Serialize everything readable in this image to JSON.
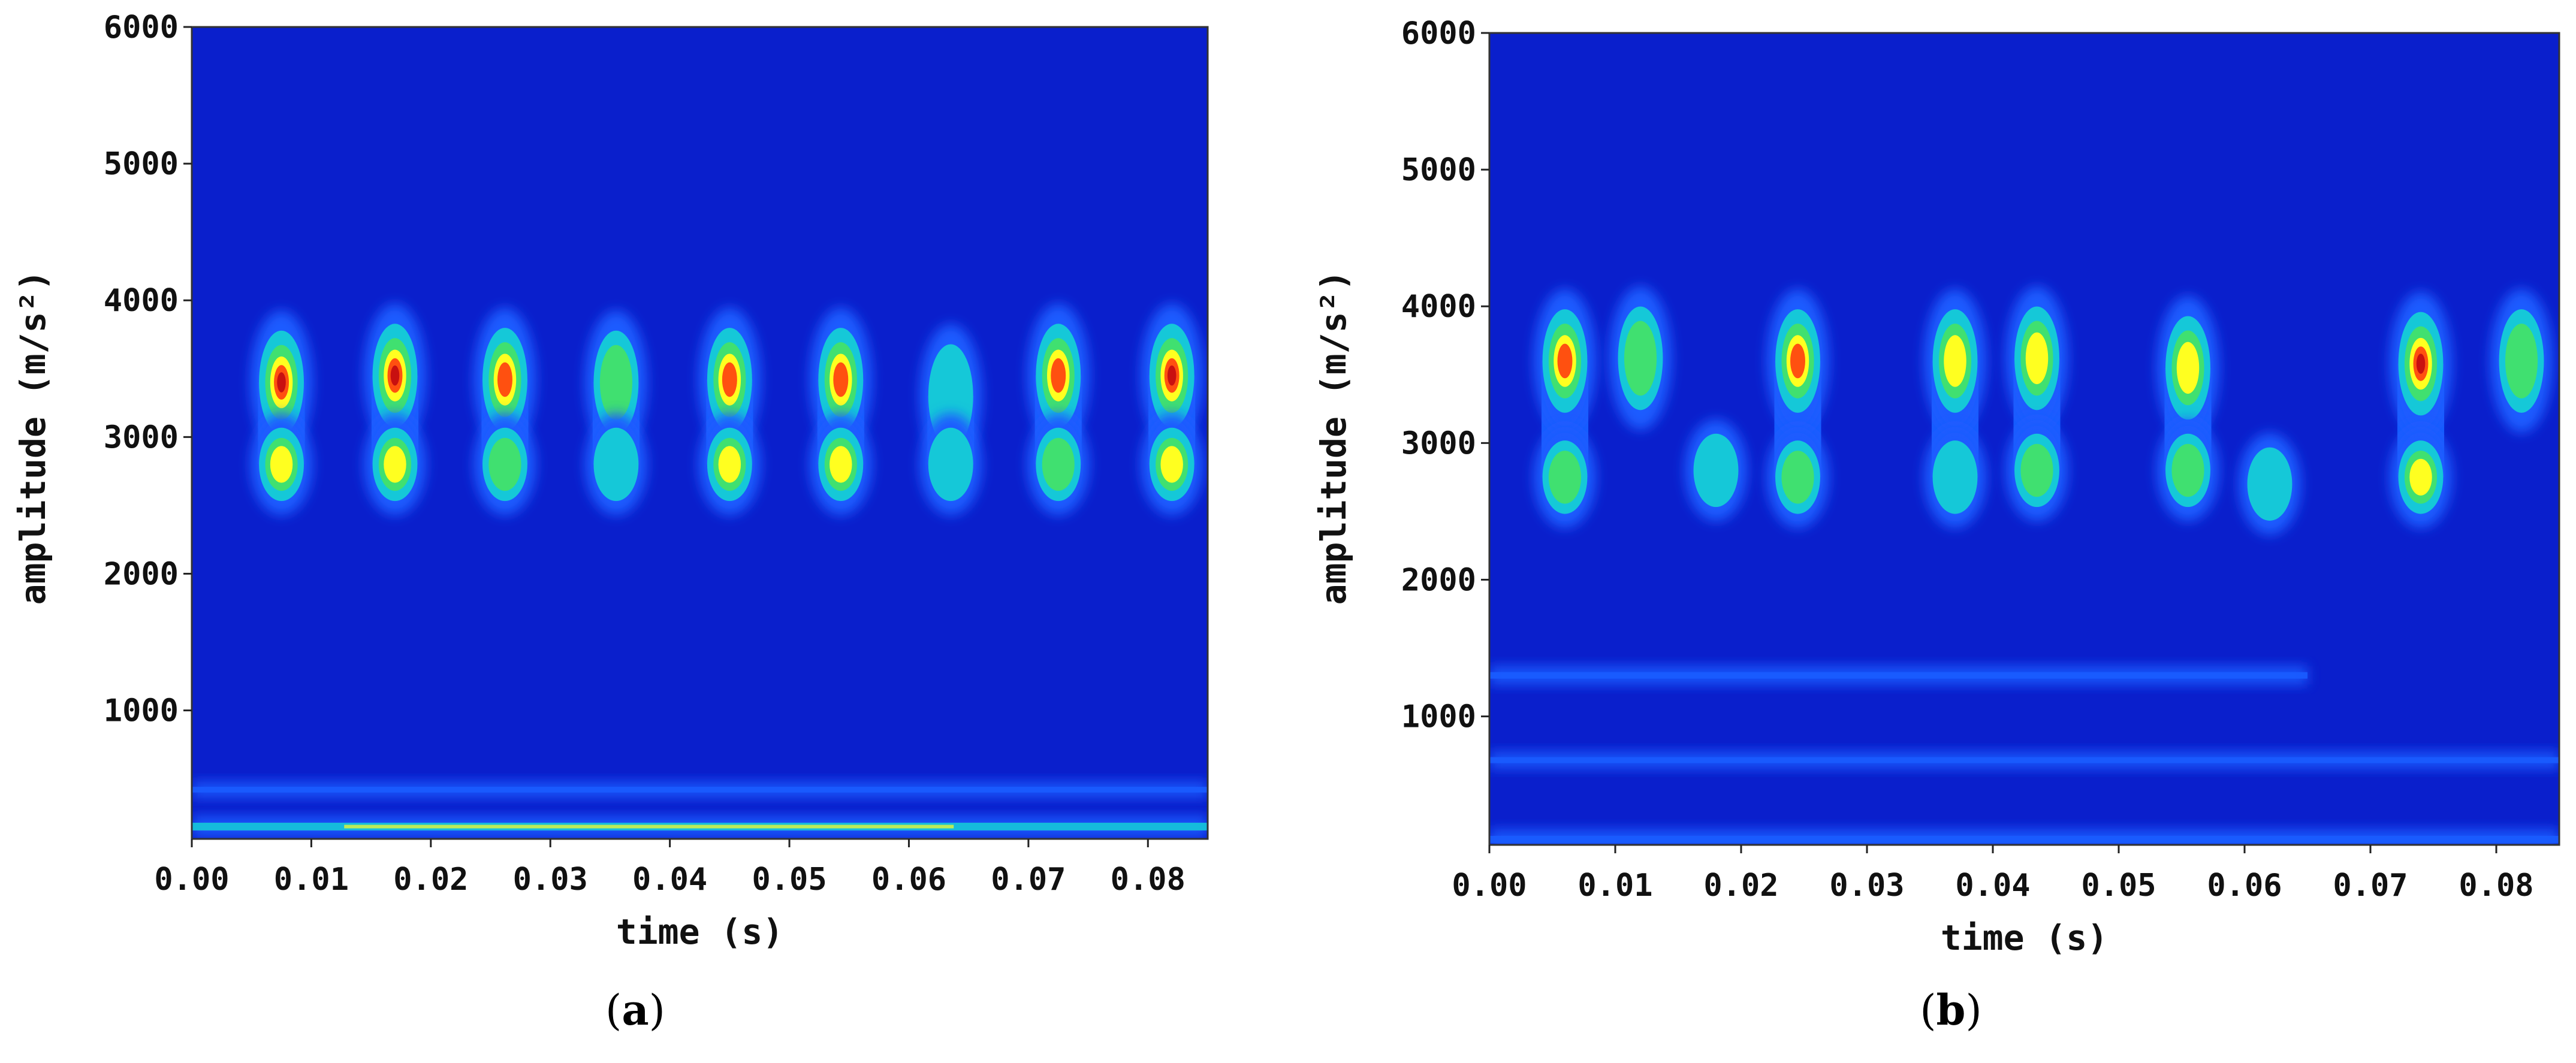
{
  "chart_data": [
    {
      "type": "heatmap",
      "panel_label": "a",
      "xlabel": "time (s)",
      "ylabel": "amplitude (m/s²)",
      "xlim": [
        0.0,
        0.085
      ],
      "ylim": [
        60,
        6000
      ],
      "xticks": [
        "0.00",
        "0.01",
        "0.02",
        "0.03",
        "0.04",
        "0.05",
        "0.06",
        "0.07",
        "0.08"
      ],
      "yticks": [
        "1000",
        "2000",
        "3000",
        "4000",
        "5000",
        "6000"
      ],
      "background_color": "#0a1fcc",
      "colormap": [
        "#0a1fcc",
        "#1a5cff",
        "#15c8d8",
        "#40e070",
        "#ffff20",
        "#ff5010",
        "#c81010"
      ],
      "bands": [
        {
          "y": 150,
          "x_start": 0.0,
          "x_end": 0.085,
          "intensity": 0.6
        },
        {
          "y": 420,
          "x_start": 0.0,
          "x_end": 0.085,
          "intensity": 0.25
        }
      ],
      "blobs": [
        {
          "t": 0.0075,
          "peak_upper": 3400,
          "peak_lower": 2800,
          "intensity": 0.95
        },
        {
          "t": 0.017,
          "peak_upper": 3450,
          "peak_lower": 2800,
          "intensity": 1.0
        },
        {
          "t": 0.0262,
          "peak_upper": 3420,
          "peak_lower": 2800,
          "intensity": 0.75
        },
        {
          "t": 0.0355,
          "peak_upper": 3400,
          "peak_lower": 2800,
          "intensity": 0.55
        },
        {
          "t": 0.045,
          "peak_upper": 3420,
          "peak_lower": 2800,
          "intensity": 0.9
        },
        {
          "t": 0.0543,
          "peak_upper": 3420,
          "peak_lower": 2800,
          "intensity": 0.9
        },
        {
          "t": 0.0635,
          "peak_upper": 3300,
          "peak_lower": 2800,
          "intensity": 0.3
        },
        {
          "t": 0.0725,
          "peak_upper": 3450,
          "peak_lower": 2800,
          "intensity": 0.85
        },
        {
          "t": 0.082,
          "peak_upper": 3450,
          "peak_lower": 2800,
          "intensity": 0.95
        }
      ]
    },
    {
      "type": "heatmap",
      "panel_label": "b",
      "xlabel": "time (s)",
      "ylabel": "amplitude (m/s²)",
      "xlim": [
        0.0,
        0.085
      ],
      "ylim": [
        60,
        6000
      ],
      "xticks": [
        "0.00",
        "0.01",
        "0.02",
        "0.03",
        "0.04",
        "0.05",
        "0.06",
        "0.07",
        "0.08"
      ],
      "yticks": [
        "1000",
        "2000",
        "3000",
        "4000",
        "5000",
        "6000"
      ],
      "background_color": "#0a1fcc",
      "colormap": [
        "#0a1fcc",
        "#1a5cff",
        "#15c8d8",
        "#40e070",
        "#ffff20",
        "#ff5010",
        "#c81010"
      ],
      "bands": [
        {
          "y": 100,
          "x_start": 0.0,
          "x_end": 0.085,
          "intensity": 0.5
        },
        {
          "y": 680,
          "x_start": 0.0,
          "x_end": 0.085,
          "intensity": 0.3
        },
        {
          "y": 1300,
          "x_start": 0.0,
          "x_end": 0.065,
          "intensity": 0.4
        }
      ],
      "blobs": [
        {
          "t": 0.006,
          "peak_upper": 3600,
          "peak_lower": 2750,
          "intensity": 0.75
        },
        {
          "t": 0.012,
          "peak_upper": 3620,
          "peak_lower": 0,
          "intensity": 0.5
        },
        {
          "t": 0.018,
          "peak_upper": 0,
          "peak_lower": 2800,
          "intensity": 0.55
        },
        {
          "t": 0.0245,
          "peak_upper": 3600,
          "peak_lower": 2750,
          "intensity": 0.8
        },
        {
          "t": 0.037,
          "peak_upper": 3600,
          "peak_lower": 2750,
          "intensity": 0.6
        },
        {
          "t": 0.0435,
          "peak_upper": 3620,
          "peak_lower": 2800,
          "intensity": 0.65
        },
        {
          "t": 0.0555,
          "peak_upper": 3550,
          "peak_lower": 2800,
          "intensity": 0.65
        },
        {
          "t": 0.062,
          "peak_upper": 0,
          "peak_lower": 2700,
          "intensity": 0.45
        },
        {
          "t": 0.074,
          "peak_upper": 3580,
          "peak_lower": 2750,
          "intensity": 0.95
        },
        {
          "t": 0.082,
          "peak_upper": 3600,
          "peak_lower": 0,
          "intensity": 0.45
        }
      ]
    }
  ]
}
